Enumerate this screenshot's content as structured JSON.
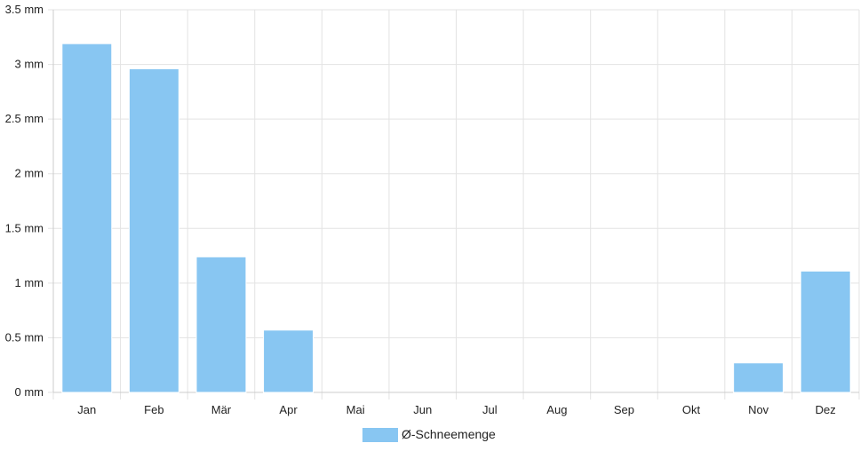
{
  "chart_data": {
    "type": "bar",
    "categories": [
      "Jan",
      "Feb",
      "Mär",
      "Apr",
      "Mai",
      "Jun",
      "Jul",
      "Aug",
      "Sep",
      "Okt",
      "Nov",
      "Dez"
    ],
    "series": [
      {
        "name": "Ø-Schneemenge",
        "values": [
          3.19,
          2.96,
          1.24,
          0.57,
          0,
          0,
          0,
          0,
          0,
          0,
          0.27,
          1.11
        ]
      }
    ],
    "y_ticks": [
      "0 mm",
      "0.5 mm",
      "1 mm",
      "1.5 mm",
      "2 mm",
      "2.5 mm",
      "3 mm",
      "3.5 mm"
    ],
    "ylim": [
      0,
      3.5
    ],
    "y_unit": "mm",
    "grid": true,
    "legend_position": "bottom-center",
    "colors": {
      "bar": "#88c6f2",
      "bar_edge": "#ffffff",
      "grid": "#e3e3e3",
      "axis": "#cccccc"
    }
  }
}
